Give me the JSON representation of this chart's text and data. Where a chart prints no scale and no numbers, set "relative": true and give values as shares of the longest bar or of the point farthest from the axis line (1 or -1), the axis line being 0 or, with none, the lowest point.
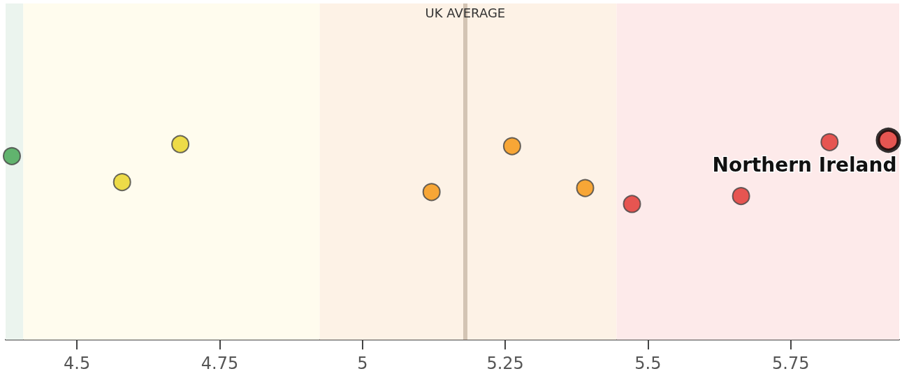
{
  "chart_data": {
    "type": "scatter",
    "relative": true,
    "x": [
      4.386,
      4.579,
      4.681,
      5.121,
      5.262,
      5.39,
      5.472,
      5.663,
      5.818,
      5.921
    ],
    "values": [
      0.92,
      0.79,
      0.98,
      0.74,
      0.97,
      0.76,
      0.68,
      0.72,
      0.99,
      1
    ],
    "colors": [
      "#3fa34d",
      "#e8d21e",
      "#e8d21e",
      "#f5920a",
      "#f5920a",
      "#f5920a",
      "#e0302a",
      "#e0302a",
      "#e0302a",
      "#e0302a"
    ],
    "xlim": [
      4.375,
      5.94
    ],
    "xticks": [
      4.5,
      4.75,
      5,
      5.25,
      5.5,
      5.75
    ],
    "bands": [
      {
        "axis": "x",
        "from": 4.375,
        "to": 4.406,
        "color": "#ebf4ee"
      },
      {
        "axis": "x",
        "from": 4.406,
        "to": 4.925,
        "color": "#fffcee"
      },
      {
        "axis": "x",
        "from": 4.925,
        "to": 5.445,
        "color": "#fdf2e6"
      },
      {
        "axis": "x",
        "from": 5.445,
        "to": 5.94,
        "color": "#fdeaea"
      }
    ],
    "ref_lines": [
      {
        "axis": "x",
        "value": 5.182,
        "label": "UK AVERAGE",
        "color": "#d3c4b4"
      }
    ],
    "annotations": [
      {
        "text": "Northern Ireland",
        "x": 5.921,
        "y": 1
      }
    ],
    "marker": "circle",
    "tick_labels": "x"
  }
}
